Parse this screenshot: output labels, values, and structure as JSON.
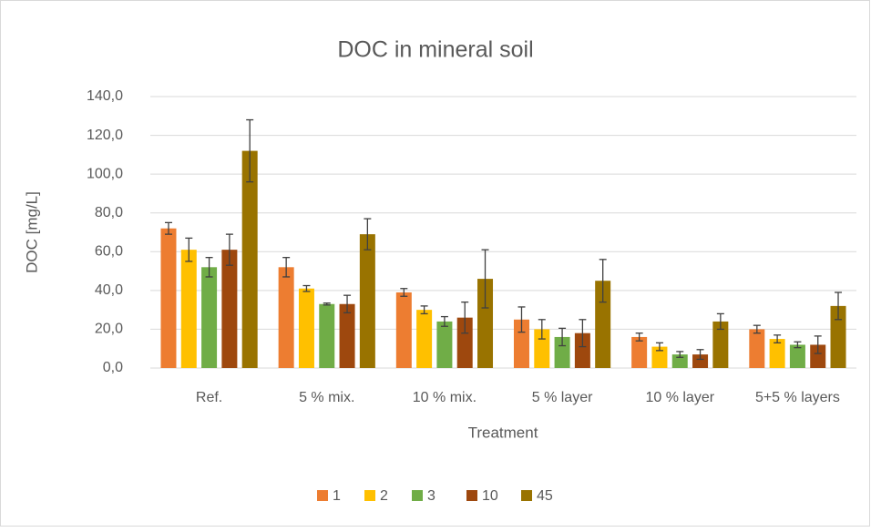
{
  "chart_data": {
    "type": "bar",
    "title": "DOC in mineral soil",
    "x_label": "Treatment",
    "y_label": "DOC [mg/L]",
    "categories": [
      "Ref.",
      "5 % mix.",
      "10 % mix.",
      "5 % layer",
      "10 % layer",
      "5+5 % layers"
    ],
    "series": [
      {
        "name": "1",
        "color": "#ed7d31",
        "values": [
          72,
          52,
          39,
          25,
          16,
          20
        ],
        "errors": [
          3,
          5,
          2,
          6.5,
          2,
          2
        ]
      },
      {
        "name": "2",
        "color": "#ffc000",
        "values": [
          61,
          41,
          30,
          20,
          11,
          15
        ],
        "errors": [
          6,
          1.5,
          2,
          5,
          2,
          2
        ]
      },
      {
        "name": "3",
        "color": "#70ad47",
        "values": [
          52,
          33,
          24,
          16,
          7,
          12
        ],
        "errors": [
          5,
          0.5,
          2.5,
          4.5,
          1.5,
          1.5
        ]
      },
      {
        "name": "10",
        "color": "#9e480e",
        "values": [
          61,
          33,
          26,
          18,
          7,
          12
        ],
        "errors": [
          8,
          4.5,
          8,
          7,
          2.5,
          4.5
        ]
      },
      {
        "name": "45",
        "color": "#997300",
        "values": [
          112,
          69,
          46,
          45,
          24,
          32
        ],
        "errors": [
          16,
          8,
          15,
          11,
          4,
          7
        ]
      }
    ],
    "ylim": [
      0,
      140
    ],
    "yticks": [
      {
        "value": 0,
        "label": "0,0"
      },
      {
        "value": 20,
        "label": "20,0"
      },
      {
        "value": 40,
        "label": "40,0"
      },
      {
        "value": 60,
        "label": "60,0"
      },
      {
        "value": 80,
        "label": "80,0"
      },
      {
        "value": 100,
        "label": "100,0"
      },
      {
        "value": 120,
        "label": "120,0"
      },
      {
        "value": 140,
        "label": "140,0"
      }
    ],
    "grid": true,
    "legend": "bottom"
  }
}
